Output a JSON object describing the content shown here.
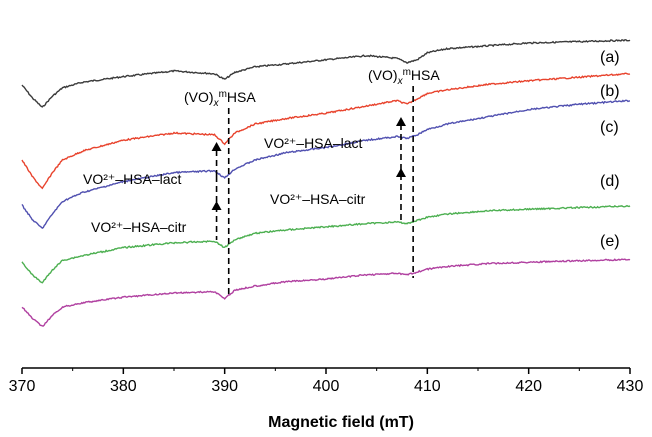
{
  "chart_data": {
    "type": "line",
    "xlabel": "Magnetic field (mT)",
    "xlim": [
      370,
      430
    ],
    "x_ticks": [
      "370",
      "380",
      "390",
      "400",
      "410",
      "420",
      "430"
    ],
    "y_ticks_visible": false,
    "grid": false,
    "series": [
      {
        "name": "(a)",
        "color": "#3a3a3a",
        "x": [
          370,
          371,
          372,
          373,
          374,
          376,
          380,
          385,
          389,
          390,
          391,
          393,
          396,
          400,
          404,
          407,
          408,
          409,
          410,
          412,
          416,
          420,
          425,
          430
        ],
        "y": [
          0.0,
          -0.9,
          -1.6,
          -0.8,
          -0.2,
          0.2,
          0.6,
          1.0,
          0.8,
          0.4,
          0.9,
          1.3,
          1.5,
          1.8,
          2.1,
          1.9,
          1.6,
          1.8,
          2.3,
          2.6,
          2.8,
          3.0,
          3.1,
          3.2
        ]
      },
      {
        "name": "(b)",
        "color": "#e8432d",
        "x": [
          370,
          371,
          372,
          373,
          374,
          376,
          380,
          385,
          389,
          390,
          391,
          393,
          396,
          400,
          404,
          407,
          408,
          409,
          410,
          412,
          416,
          420,
          425,
          430
        ],
        "y": [
          0.0,
          -0.9,
          -1.6,
          -0.7,
          0.0,
          0.5,
          1.1,
          1.5,
          1.4,
          0.9,
          1.5,
          2.0,
          2.3,
          2.6,
          3.0,
          3.3,
          3.1,
          3.4,
          3.7,
          3.9,
          4.2,
          4.4,
          4.6,
          4.8
        ]
      },
      {
        "name": "(c)",
        "color": "#5050b0",
        "x": [
          370,
          371,
          372,
          373,
          374,
          376,
          380,
          385,
          389,
          390,
          391,
          393,
          396,
          400,
          404,
          407,
          408,
          409,
          410,
          412,
          416,
          420,
          425,
          430
        ],
        "y": [
          0.0,
          -0.8,
          -1.3,
          -0.5,
          0.2,
          0.7,
          1.3,
          1.8,
          1.9,
          1.5,
          2.0,
          2.5,
          2.9,
          3.2,
          3.6,
          3.8,
          3.7,
          3.9,
          4.2,
          4.5,
          4.9,
          5.3,
          5.6,
          5.8
        ]
      },
      {
        "name": "(d)",
        "color": "#4caf50",
        "x": [
          370,
          371,
          372,
          373,
          374,
          376,
          380,
          385,
          389,
          390,
          391,
          393,
          396,
          400,
          404,
          407,
          408,
          409,
          410,
          412,
          416,
          420,
          425,
          430
        ],
        "y": [
          0.0,
          -0.8,
          -1.3,
          -0.5,
          0.1,
          0.4,
          0.9,
          1.2,
          1.3,
          0.9,
          1.4,
          1.8,
          2.0,
          2.2,
          2.4,
          2.5,
          2.4,
          2.6,
          2.8,
          3.0,
          3.2,
          3.3,
          3.4,
          3.5
        ]
      },
      {
        "name": "(e)",
        "color": "#b040a0",
        "x": [
          370,
          371,
          372,
          373,
          374,
          376,
          380,
          385,
          389,
          390,
          391,
          393,
          396,
          400,
          404,
          407,
          408,
          409,
          410,
          412,
          416,
          420,
          425,
          430
        ],
        "y": [
          0.0,
          -0.8,
          -1.4,
          -0.6,
          0.0,
          0.3,
          0.7,
          1.0,
          1.1,
          0.6,
          1.2,
          1.5,
          1.8,
          2.0,
          2.3,
          2.4,
          2.3,
          2.5,
          2.7,
          2.9,
          3.1,
          3.2,
          3.3,
          3.4
        ]
      }
    ],
    "series_labels": [
      "(a)",
      "(b)",
      "(c)",
      "(d)",
      "(e)"
    ],
    "annotations": [
      {
        "prefix": "(VO)",
        "sub": "x",
        "sup": "m",
        "suffix": "HSA",
        "at_x": 390.4
      },
      {
        "prefix": "(VO)",
        "sub": "x",
        "sup": "m",
        "suffix": "HSA",
        "at_x": 408.6
      },
      {
        "text": "VO²⁺–HSA–lact",
        "at_x": 389.2
      },
      {
        "text": "VO²⁺–HSA–lact",
        "at_x": 407.4
      },
      {
        "text": "VO²⁺–HSA–citr",
        "at_x": 389.2
      },
      {
        "text": "VO²⁺–HSA–citr",
        "at_x": 407.4
      }
    ]
  }
}
